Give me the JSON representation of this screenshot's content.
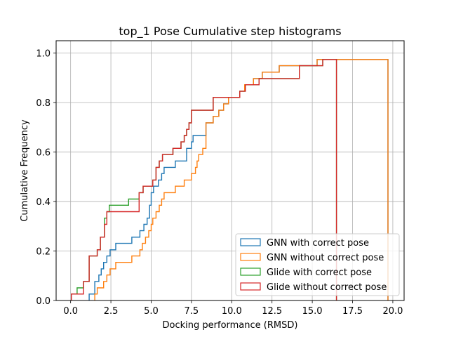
{
  "chart_data": {
    "type": "line",
    "title": "top_1 Pose Cumulative step histograms",
    "xlabel": "Docking performance (RMSD)",
    "ylabel": "Cumulative Frequency",
    "xlim": [
      -0.9,
      20.7
    ],
    "ylim": [
      0,
      1.05
    ],
    "xticks": [
      0.0,
      2.5,
      5.0,
      7.5,
      10.0,
      12.5,
      15.0,
      17.5,
      20.0
    ],
    "xtick_labels": [
      "0.0",
      "2.5",
      "5.0",
      "7.5",
      "10.0",
      "12.5",
      "15.0",
      "17.5",
      "20.0"
    ],
    "yticks": [
      0.0,
      0.2,
      0.4,
      0.6,
      0.8,
      1.0
    ],
    "ytick_labels": [
      "0.0",
      "0.2",
      "0.4",
      "0.6",
      "0.8",
      "1.0"
    ],
    "grid": true,
    "legend_position": "lower-right",
    "series": [
      {
        "name": "GNN with correct pose",
        "color": "#1f77b4",
        "end_x": 19.7,
        "points": [
          [
            1.15,
            0
          ],
          [
            1.15,
            0.026
          ],
          [
            1.5,
            0.026
          ],
          [
            1.5,
            0.077
          ],
          [
            1.75,
            0.077
          ],
          [
            1.75,
            0.103
          ],
          [
            1.9,
            0.103
          ],
          [
            1.9,
            0.128
          ],
          [
            2.05,
            0.128
          ],
          [
            2.05,
            0.154
          ],
          [
            2.25,
            0.154
          ],
          [
            2.25,
            0.18
          ],
          [
            2.45,
            0.18
          ],
          [
            2.45,
            0.205
          ],
          [
            2.8,
            0.205
          ],
          [
            2.8,
            0.231
          ],
          [
            3.8,
            0.231
          ],
          [
            3.8,
            0.256
          ],
          [
            4.3,
            0.256
          ],
          [
            4.3,
            0.282
          ],
          [
            4.55,
            0.282
          ],
          [
            4.55,
            0.308
          ],
          [
            4.75,
            0.308
          ],
          [
            4.75,
            0.333
          ],
          [
            4.9,
            0.333
          ],
          [
            4.9,
            0.385
          ],
          [
            5.0,
            0.385
          ],
          [
            5.0,
            0.436
          ],
          [
            5.15,
            0.436
          ],
          [
            5.15,
            0.462
          ],
          [
            5.45,
            0.462
          ],
          [
            5.45,
            0.487
          ],
          [
            5.65,
            0.487
          ],
          [
            5.65,
            0.513
          ],
          [
            5.8,
            0.513
          ],
          [
            5.8,
            0.538
          ],
          [
            6.5,
            0.538
          ],
          [
            6.5,
            0.564
          ],
          [
            7.2,
            0.564
          ],
          [
            7.2,
            0.615
          ],
          [
            7.5,
            0.615
          ],
          [
            7.5,
            0.641
          ],
          [
            7.6,
            0.641
          ],
          [
            7.6,
            0.667
          ],
          [
            8.4,
            0.667
          ],
          [
            8.4,
            0.718
          ],
          [
            8.85,
            0.718
          ],
          [
            8.85,
            0.744
          ],
          [
            9.2,
            0.744
          ],
          [
            9.2,
            0.769
          ],
          [
            9.5,
            0.769
          ],
          [
            9.5,
            0.795
          ],
          [
            9.8,
            0.795
          ],
          [
            9.8,
            0.821
          ],
          [
            10.5,
            0.821
          ],
          [
            10.5,
            0.846
          ],
          [
            10.8,
            0.846
          ],
          [
            10.8,
            0.872
          ],
          [
            11.35,
            0.872
          ],
          [
            11.35,
            0.897
          ],
          [
            11.9,
            0.897
          ],
          [
            11.9,
            0.923
          ],
          [
            12.95,
            0.923
          ],
          [
            12.95,
            0.949
          ],
          [
            15.3,
            0.949
          ],
          [
            15.3,
            0.974
          ],
          [
            19.7,
            0.974
          ]
        ]
      },
      {
        "name": "GNN without correct pose",
        "color": "#ff7f0e",
        "end_x": 19.7,
        "points": [
          [
            1.5,
            0
          ],
          [
            1.5,
            0.026
          ],
          [
            1.65,
            0.026
          ],
          [
            1.65,
            0.051
          ],
          [
            2.05,
            0.051
          ],
          [
            2.05,
            0.077
          ],
          [
            2.25,
            0.077
          ],
          [
            2.25,
            0.103
          ],
          [
            2.45,
            0.103
          ],
          [
            2.45,
            0.128
          ],
          [
            2.8,
            0.128
          ],
          [
            2.8,
            0.154
          ],
          [
            3.8,
            0.154
          ],
          [
            3.8,
            0.18
          ],
          [
            4.3,
            0.18
          ],
          [
            4.3,
            0.205
          ],
          [
            4.45,
            0.205
          ],
          [
            4.45,
            0.231
          ],
          [
            4.65,
            0.231
          ],
          [
            4.65,
            0.256
          ],
          [
            4.85,
            0.256
          ],
          [
            4.85,
            0.282
          ],
          [
            5.0,
            0.282
          ],
          [
            5.0,
            0.308
          ],
          [
            5.1,
            0.308
          ],
          [
            5.1,
            0.333
          ],
          [
            5.3,
            0.333
          ],
          [
            5.3,
            0.359
          ],
          [
            5.5,
            0.359
          ],
          [
            5.5,
            0.385
          ],
          [
            5.65,
            0.385
          ],
          [
            5.65,
            0.41
          ],
          [
            5.8,
            0.41
          ],
          [
            5.8,
            0.436
          ],
          [
            6.5,
            0.436
          ],
          [
            6.5,
            0.462
          ],
          [
            7.05,
            0.462
          ],
          [
            7.05,
            0.487
          ],
          [
            7.5,
            0.487
          ],
          [
            7.5,
            0.513
          ],
          [
            7.75,
            0.513
          ],
          [
            7.75,
            0.538
          ],
          [
            7.85,
            0.538
          ],
          [
            7.85,
            0.564
          ],
          [
            7.95,
            0.564
          ],
          [
            7.95,
            0.59
          ],
          [
            8.2,
            0.59
          ],
          [
            8.2,
            0.615
          ],
          [
            8.4,
            0.615
          ],
          [
            8.4,
            0.718
          ],
          [
            8.85,
            0.718
          ],
          [
            8.85,
            0.744
          ],
          [
            9.2,
            0.744
          ],
          [
            9.2,
            0.769
          ],
          [
            9.5,
            0.769
          ],
          [
            9.5,
            0.795
          ],
          [
            9.8,
            0.795
          ],
          [
            9.8,
            0.821
          ],
          [
            10.5,
            0.821
          ],
          [
            10.5,
            0.846
          ],
          [
            10.8,
            0.846
          ],
          [
            10.8,
            0.872
          ],
          [
            11.35,
            0.872
          ],
          [
            11.35,
            0.897
          ],
          [
            11.9,
            0.897
          ],
          [
            11.9,
            0.923
          ],
          [
            12.95,
            0.923
          ],
          [
            12.95,
            0.949
          ],
          [
            15.3,
            0.949
          ],
          [
            15.3,
            0.974
          ],
          [
            19.7,
            0.974
          ]
        ]
      },
      {
        "name": "Glide with correct pose",
        "color": "#2ca02c",
        "end_x": 16.5,
        "points": [
          [
            0.05,
            0
          ],
          [
            0.05,
            0.026
          ],
          [
            0.4,
            0.026
          ],
          [
            0.4,
            0.051
          ],
          [
            0.8,
            0.051
          ],
          [
            0.8,
            0.077
          ],
          [
            1.15,
            0.077
          ],
          [
            1.15,
            0.18
          ],
          [
            1.65,
            0.18
          ],
          [
            1.65,
            0.205
          ],
          [
            1.85,
            0.205
          ],
          [
            1.85,
            0.256
          ],
          [
            2.1,
            0.256
          ],
          [
            2.1,
            0.333
          ],
          [
            2.25,
            0.333
          ],
          [
            2.25,
            0.359
          ],
          [
            2.4,
            0.359
          ],
          [
            2.4,
            0.385
          ],
          [
            3.6,
            0.385
          ],
          [
            3.6,
            0.41
          ],
          [
            4.25,
            0.41
          ],
          [
            4.25,
            0.436
          ],
          [
            4.5,
            0.436
          ],
          [
            4.5,
            0.462
          ],
          [
            5.1,
            0.462
          ],
          [
            5.1,
            0.487
          ],
          [
            5.3,
            0.487
          ],
          [
            5.3,
            0.538
          ],
          [
            5.5,
            0.538
          ],
          [
            5.5,
            0.564
          ],
          [
            5.7,
            0.564
          ],
          [
            5.7,
            0.59
          ],
          [
            6.35,
            0.59
          ],
          [
            6.35,
            0.615
          ],
          [
            6.85,
            0.615
          ],
          [
            6.85,
            0.641
          ],
          [
            7.05,
            0.641
          ],
          [
            7.05,
            0.667
          ],
          [
            7.2,
            0.667
          ],
          [
            7.2,
            0.692
          ],
          [
            7.35,
            0.692
          ],
          [
            7.35,
            0.718
          ],
          [
            7.5,
            0.718
          ],
          [
            7.5,
            0.769
          ],
          [
            8.85,
            0.769
          ],
          [
            8.85,
            0.821
          ],
          [
            10.5,
            0.821
          ],
          [
            10.5,
            0.846
          ],
          [
            10.85,
            0.846
          ],
          [
            10.85,
            0.872
          ],
          [
            11.7,
            0.872
          ],
          [
            11.7,
            0.897
          ],
          [
            14.2,
            0.897
          ],
          [
            14.2,
            0.949
          ],
          [
            15.65,
            0.949
          ],
          [
            15.65,
            0.974
          ],
          [
            16.5,
            0.974
          ]
        ]
      },
      {
        "name": "Glide without correct pose",
        "color": "#d62728",
        "end_x": 16.5,
        "points": [
          [
            0.05,
            0
          ],
          [
            0.05,
            0.026
          ],
          [
            0.8,
            0.026
          ],
          [
            0.8,
            0.077
          ],
          [
            1.15,
            0.077
          ],
          [
            1.15,
            0.18
          ],
          [
            1.65,
            0.18
          ],
          [
            1.65,
            0.205
          ],
          [
            1.85,
            0.205
          ],
          [
            1.85,
            0.256
          ],
          [
            2.1,
            0.256
          ],
          [
            2.1,
            0.308
          ],
          [
            2.25,
            0.308
          ],
          [
            2.25,
            0.359
          ],
          [
            4.25,
            0.359
          ],
          [
            4.25,
            0.436
          ],
          [
            4.5,
            0.436
          ],
          [
            4.5,
            0.462
          ],
          [
            5.1,
            0.462
          ],
          [
            5.1,
            0.487
          ],
          [
            5.3,
            0.487
          ],
          [
            5.3,
            0.538
          ],
          [
            5.5,
            0.538
          ],
          [
            5.5,
            0.564
          ],
          [
            5.7,
            0.564
          ],
          [
            5.7,
            0.59
          ],
          [
            6.35,
            0.59
          ],
          [
            6.35,
            0.615
          ],
          [
            6.85,
            0.615
          ],
          [
            6.85,
            0.641
          ],
          [
            7.05,
            0.641
          ],
          [
            7.05,
            0.667
          ],
          [
            7.2,
            0.667
          ],
          [
            7.2,
            0.692
          ],
          [
            7.35,
            0.692
          ],
          [
            7.35,
            0.718
          ],
          [
            7.5,
            0.718
          ],
          [
            7.5,
            0.769
          ],
          [
            8.85,
            0.769
          ],
          [
            8.85,
            0.821
          ],
          [
            10.5,
            0.821
          ],
          [
            10.5,
            0.846
          ],
          [
            10.85,
            0.846
          ],
          [
            10.85,
            0.872
          ],
          [
            11.7,
            0.872
          ],
          [
            11.7,
            0.897
          ],
          [
            14.2,
            0.897
          ],
          [
            14.2,
            0.949
          ],
          [
            15.65,
            0.949
          ],
          [
            15.65,
            0.974
          ],
          [
            16.5,
            0.974
          ]
        ]
      }
    ]
  }
}
